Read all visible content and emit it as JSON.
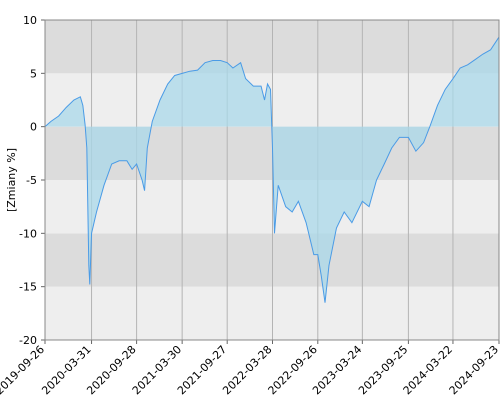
{
  "chart_data": {
    "type": "area",
    "y_label": "[Zmiany %]",
    "line_color": "#4a9be6",
    "fill_color": "#a9d8ea",
    "ylim": [
      -20,
      10
    ],
    "yticks": [
      -20,
      -15,
      -10,
      -5,
      0,
      5,
      10
    ],
    "xlim": [
      "2019-09-26",
      "2024-09-23"
    ],
    "xticks": [
      "2019-09-26",
      "2020-03-31",
      "2020-09-28",
      "2021-03-30",
      "2021-09-27",
      "2022-03-28",
      "2022-09-26",
      "2023-03-24",
      "2023-09-25",
      "2024-03-22",
      "2024-09-23"
    ],
    "grid": true,
    "x": [
      "2019-09-26",
      "2019-10-20",
      "2019-11-20",
      "2019-12-20",
      "2020-01-20",
      "2020-02-15",
      "2020-02-25",
      "2020-03-05",
      "2020-03-12",
      "2020-03-20",
      "2020-03-24",
      "2020-03-31",
      "2020-04-20",
      "2020-05-20",
      "2020-06-20",
      "2020-07-20",
      "2020-08-20",
      "2020-09-10",
      "2020-09-28",
      "2020-10-20",
      "2020-10-30",
      "2020-11-10",
      "2020-11-30",
      "2020-12-31",
      "2021-01-31",
      "2021-02-28",
      "2021-03-30",
      "2021-04-30",
      "2021-05-31",
      "2021-06-30",
      "2021-07-31",
      "2021-08-31",
      "2021-09-27",
      "2021-10-20",
      "2021-11-20",
      "2021-12-10",
      "2022-01-10",
      "2022-02-10",
      "2022-02-24",
      "2022-03-08",
      "2022-03-20",
      "2022-03-28",
      "2022-04-05",
      "2022-04-20",
      "2022-05-20",
      "2022-06-15",
      "2022-07-10",
      "2022-08-10",
      "2022-09-10",
      "2022-09-26",
      "2022-10-10",
      "2022-10-25",
      "2022-11-10",
      "2022-12-10",
      "2023-01-10",
      "2023-02-10",
      "2023-03-24",
      "2023-04-20",
      "2023-05-20",
      "2023-06-20",
      "2023-07-20",
      "2023-08-20",
      "2023-09-25",
      "2023-10-25",
      "2023-11-25",
      "2023-12-20",
      "2024-01-20",
      "2024-02-20",
      "2024-03-22",
      "2024-04-20",
      "2024-05-20",
      "2024-06-20",
      "2024-07-20",
      "2024-08-20",
      "2024-09-23"
    ],
    "values": [
      0,
      0.5,
      1.0,
      1.8,
      2.5,
      2.8,
      2.0,
      0.2,
      -2,
      -13,
      -14.8,
      -10,
      -8,
      -5.5,
      -3.5,
      -3.2,
      -3.2,
      -4,
      -3.5,
      -5,
      -6,
      -2,
      0.5,
      2.5,
      4.0,
      4.8,
      5.0,
      5.2,
      5.3,
      6.0,
      6.2,
      6.2,
      6.0,
      5.5,
      6.0,
      4.5,
      3.8,
      3.8,
      2.5,
      4.0,
      3.5,
      -2,
      -10,
      -5.5,
      -7.5,
      -8.0,
      -7,
      -9,
      -12,
      -12,
      -14,
      -16.5,
      -13,
      -9.5,
      -8,
      -9,
      -7,
      -7.5,
      -5,
      -3.5,
      -2,
      -1,
      -1,
      -2.3,
      -1.5,
      0,
      2,
      3.5,
      4.5,
      5.5,
      5.8,
      6.3,
      6.8,
      7.2,
      8.4
    ]
  }
}
